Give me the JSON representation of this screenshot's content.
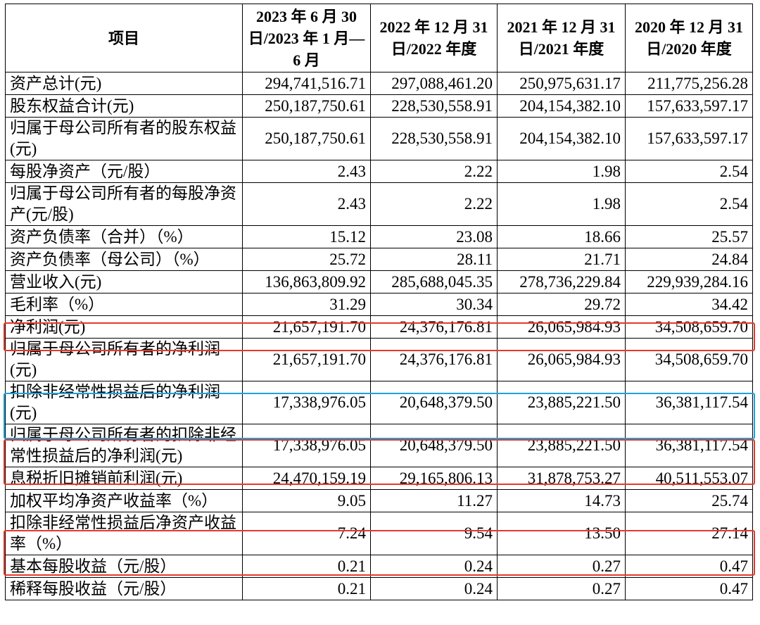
{
  "table": {
    "header": [
      "项目",
      "2023 年 6 月 30 日/2023 年 1 月—6 月",
      "2022 年 12 月 31 日/2022 年度",
      "2021 年 12 月 31 日/2021 年度",
      "2020 年 12 月 31 日/2020 年度"
    ],
    "rows": [
      [
        "资产总计(元)",
        "294,741,516.71",
        "297,088,461.20",
        "250,975,631.17",
        "211,775,256.28"
      ],
      [
        "股东权益合计(元)",
        "250,187,750.61",
        "228,530,558.91",
        "204,154,382.10",
        "157,633,597.17"
      ],
      [
        "归属于母公司所有者的股东权益(元)",
        "250,187,750.61",
        "228,530,558.91",
        "204,154,382.10",
        "157,633,597.17"
      ],
      [
        "每股净资产（元/股）",
        "2.43",
        "2.22",
        "1.98",
        "2.54"
      ],
      [
        "归属于母公司所有者的每股净资产(元/股)",
        "2.43",
        "2.22",
        "1.98",
        "2.54"
      ],
      [
        "资产负债率（合并）（%）",
        "15.12",
        "23.08",
        "18.66",
        "25.57"
      ],
      [
        "资产负债率（母公司）（%）",
        "25.72",
        "28.11",
        "21.71",
        "24.84"
      ],
      [
        "营业收入(元)",
        "136,863,809.92",
        "285,688,045.35",
        "278,736,229.84",
        "229,939,284.16"
      ],
      [
        "毛利率（%）",
        "31.29",
        "30.34",
        "29.72",
        "34.42"
      ],
      [
        "净利润(元)",
        "21,657,191.70",
        "24,376,176.81",
        "26,065,984.93",
        "34,508,659.70"
      ],
      [
        "归属于母公司所有者的净利润(元)",
        "21,657,191.70",
        "24,376,176.81",
        "26,065,984.93",
        "34,508,659.70"
      ],
      [
        "扣除非经常性损益后的净利润(元)",
        "17,338,976.05",
        "20,648,379.50",
        "23,885,221.50",
        "36,381,117.54"
      ],
      [
        "归属于母公司所有者的扣除非经常性损益后的净利润(元)",
        "17,338,976.05",
        "20,648,379.50",
        "23,885,221.50",
        "36,381,117.54"
      ],
      [
        "息税折旧摊销前利润(元)",
        "24,470,159.19",
        "29,165,806.13",
        "31,878,753.27",
        "40,511,553.07"
      ],
      [
        "加权平均净资产收益率（%）",
        "9.05",
        "11.27",
        "14.73",
        "25.74"
      ],
      [
        "扣除非经常性损益后净资产收益率（%）",
        "7.24",
        "9.54",
        "13.50",
        "27.14"
      ],
      [
        "基本每股收益（元/股）",
        "0.21",
        "0.24",
        "0.27",
        "0.47"
      ],
      [
        "稀释每股收益（元/股）",
        "0.21",
        "0.24",
        "0.27",
        "0.47"
      ]
    ]
  }
}
